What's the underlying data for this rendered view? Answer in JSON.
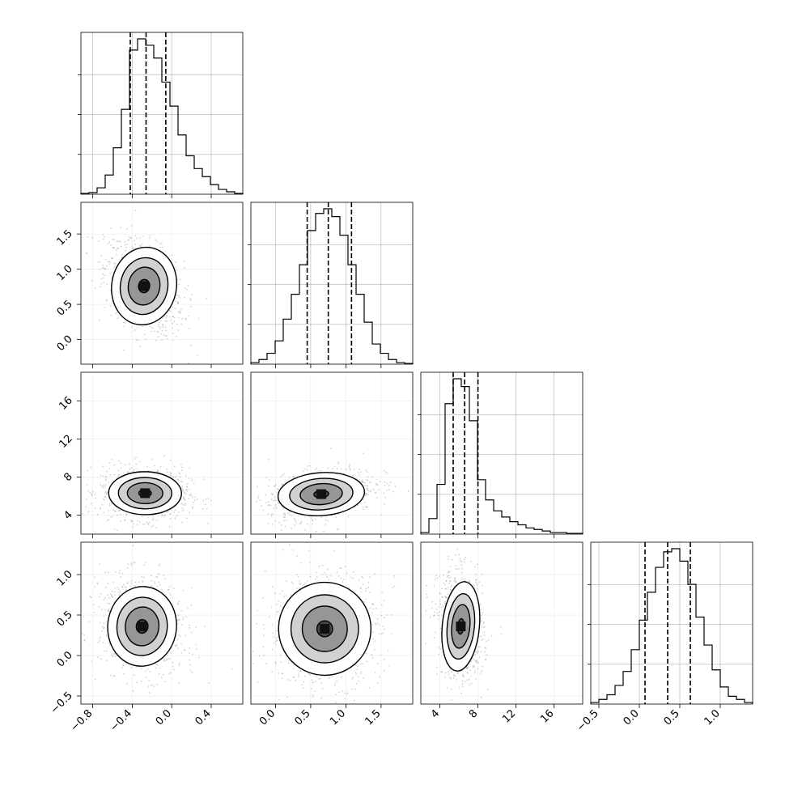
{
  "chart_data": {
    "type": "corner",
    "parameters": [
      {
        "hist": {
          "type": "histogram",
          "x_range": [
            -0.92,
            0.72
          ],
          "y_ticks_shown": 3,
          "counts": [
            0.005,
            0.01,
            0.04,
            0.12,
            0.29,
            0.53,
            0.9,
            0.97,
            0.93,
            0.85,
            0.7,
            0.55,
            0.37,
            0.24,
            0.16,
            0.11,
            0.06,
            0.03,
            0.015,
            0.005
          ],
          "quantiles": [
            -0.42,
            -0.26,
            -0.06
          ]
        },
        "x_axis_ticks": [
          "−0.8",
          "−0.4",
          "0.0",
          "0.4"
        ],
        "x_axis_tick_values": [
          -0.8,
          -0.4,
          0.0,
          0.4
        ]
      },
      {
        "hist": {
          "type": "histogram",
          "x_range": [
            -0.35,
            1.95
          ],
          "y_ticks_shown": 3,
          "counts": [
            0.01,
            0.03,
            0.07,
            0.15,
            0.29,
            0.45,
            0.64,
            0.86,
            0.97,
            1.0,
            0.95,
            0.83,
            0.64,
            0.45,
            0.27,
            0.13,
            0.07,
            0.03,
            0.01,
            0.005
          ],
          "quantiles": [
            0.45,
            0.75,
            1.08
          ]
        },
        "x_axis_ticks": [
          "0.0",
          "0.5",
          "1.0",
          "1.5"
        ],
        "x_axis_tick_values": [
          0.0,
          0.5,
          1.0,
          1.5
        ],
        "y_axis_ticks": [
          "0.0",
          "0.5",
          "1.0",
          "1.5"
        ],
        "y_axis_tick_values": [
          0.0,
          0.5,
          1.0,
          1.5
        ]
      },
      {
        "hist": {
          "type": "histogram",
          "x_range": [
            2.0,
            19.0
          ],
          "y_ticks_shown": 3,
          "counts": [
            0.01,
            0.1,
            0.32,
            0.84,
            1.0,
            0.95,
            0.73,
            0.35,
            0.22,
            0.15,
            0.11,
            0.08,
            0.06,
            0.04,
            0.03,
            0.02,
            0.01,
            0.01,
            0.005,
            0.005
          ],
          "quantiles": [
            5.4,
            6.6,
            8.0
          ]
        },
        "x_axis_ticks": [
          "4",
          "8",
          "12",
          "16"
        ],
        "x_axis_tick_values": [
          4,
          8,
          12,
          16
        ],
        "y_axis_ticks": [
          "4",
          "8",
          "12",
          "16"
        ],
        "y_axis_tick_values": [
          4,
          8,
          12,
          16
        ]
      },
      {
        "hist": {
          "type": "histogram",
          "x_range": [
            -0.6,
            1.4
          ],
          "y_ticks_shown": 3,
          "counts": [
            0.01,
            0.03,
            0.06,
            0.12,
            0.21,
            0.35,
            0.54,
            0.72,
            0.88,
            0.98,
            1.0,
            0.92,
            0.77,
            0.56,
            0.38,
            0.22,
            0.11,
            0.05,
            0.03,
            0.01
          ],
          "quantiles": [
            0.07,
            0.35,
            0.63
          ]
        },
        "x_axis_ticks": [
          "−0.5",
          "0.0",
          "0.5",
          "1.0"
        ],
        "x_axis_tick_values": [
          -0.5,
          0.0,
          0.5,
          1.0
        ],
        "y_axis_ticks": [
          "−0.5",
          "0.0",
          "0.5",
          "1.0"
        ],
        "y_axis_tick_values": [
          -0.5,
          0.0,
          0.5,
          1.0
        ]
      }
    ],
    "joint": [
      {
        "row": 1,
        "col": 0,
        "x_range": [
          -0.92,
          0.72
        ],
        "y_range": [
          -0.35,
          1.95
        ],
        "center": [
          -0.28,
          0.76
        ],
        "sigma": [
          0.16,
          0.27
        ],
        "corr": -0.4,
        "contour_levels": 4
      },
      {
        "row": 2,
        "col": 0,
        "x_range": [
          -0.92,
          0.72
        ],
        "y_range": [
          2.0,
          19.0
        ],
        "center": [
          -0.27,
          6.3
        ],
        "sigma": [
          0.18,
          1.1
        ],
        "corr": -0.05,
        "contour_levels": 4
      },
      {
        "row": 2,
        "col": 1,
        "x_range": [
          -0.35,
          1.95
        ],
        "y_range": [
          2.0,
          19.0
        ],
        "center": [
          0.65,
          6.2
        ],
        "sigma": [
          0.3,
          1.1
        ],
        "corr": 0.35,
        "contour_levels": 4
      },
      {
        "row": 3,
        "col": 0,
        "x_range": [
          -0.92,
          0.72
        ],
        "y_range": [
          -0.6,
          1.4
        ],
        "center": [
          -0.3,
          0.36
        ],
        "sigma": [
          0.17,
          0.24
        ],
        "corr": -0.2,
        "contour_levels": 4
      },
      {
        "row": 3,
        "col": 1,
        "x_range": [
          -0.35,
          1.95
        ],
        "y_range": [
          -0.6,
          1.4
        ],
        "center": [
          0.7,
          0.33
        ],
        "sigma": [
          0.32,
          0.28
        ],
        "corr": 0.05,
        "contour_levels": 4
      },
      {
        "row": 3,
        "col": 2,
        "x_range": [
          2.0,
          19.0
        ],
        "y_range": [
          -0.6,
          1.4
        ],
        "center": [
          6.2,
          0.36
        ],
        "sigma": [
          0.95,
          0.27
        ],
        "corr": -0.1,
        "contour_levels": 4
      }
    ],
    "grid": true,
    "colors": {
      "axis": "#000000",
      "grid": "#b0b0b0",
      "density": "#000000",
      "points": "#7f7f7f"
    }
  }
}
